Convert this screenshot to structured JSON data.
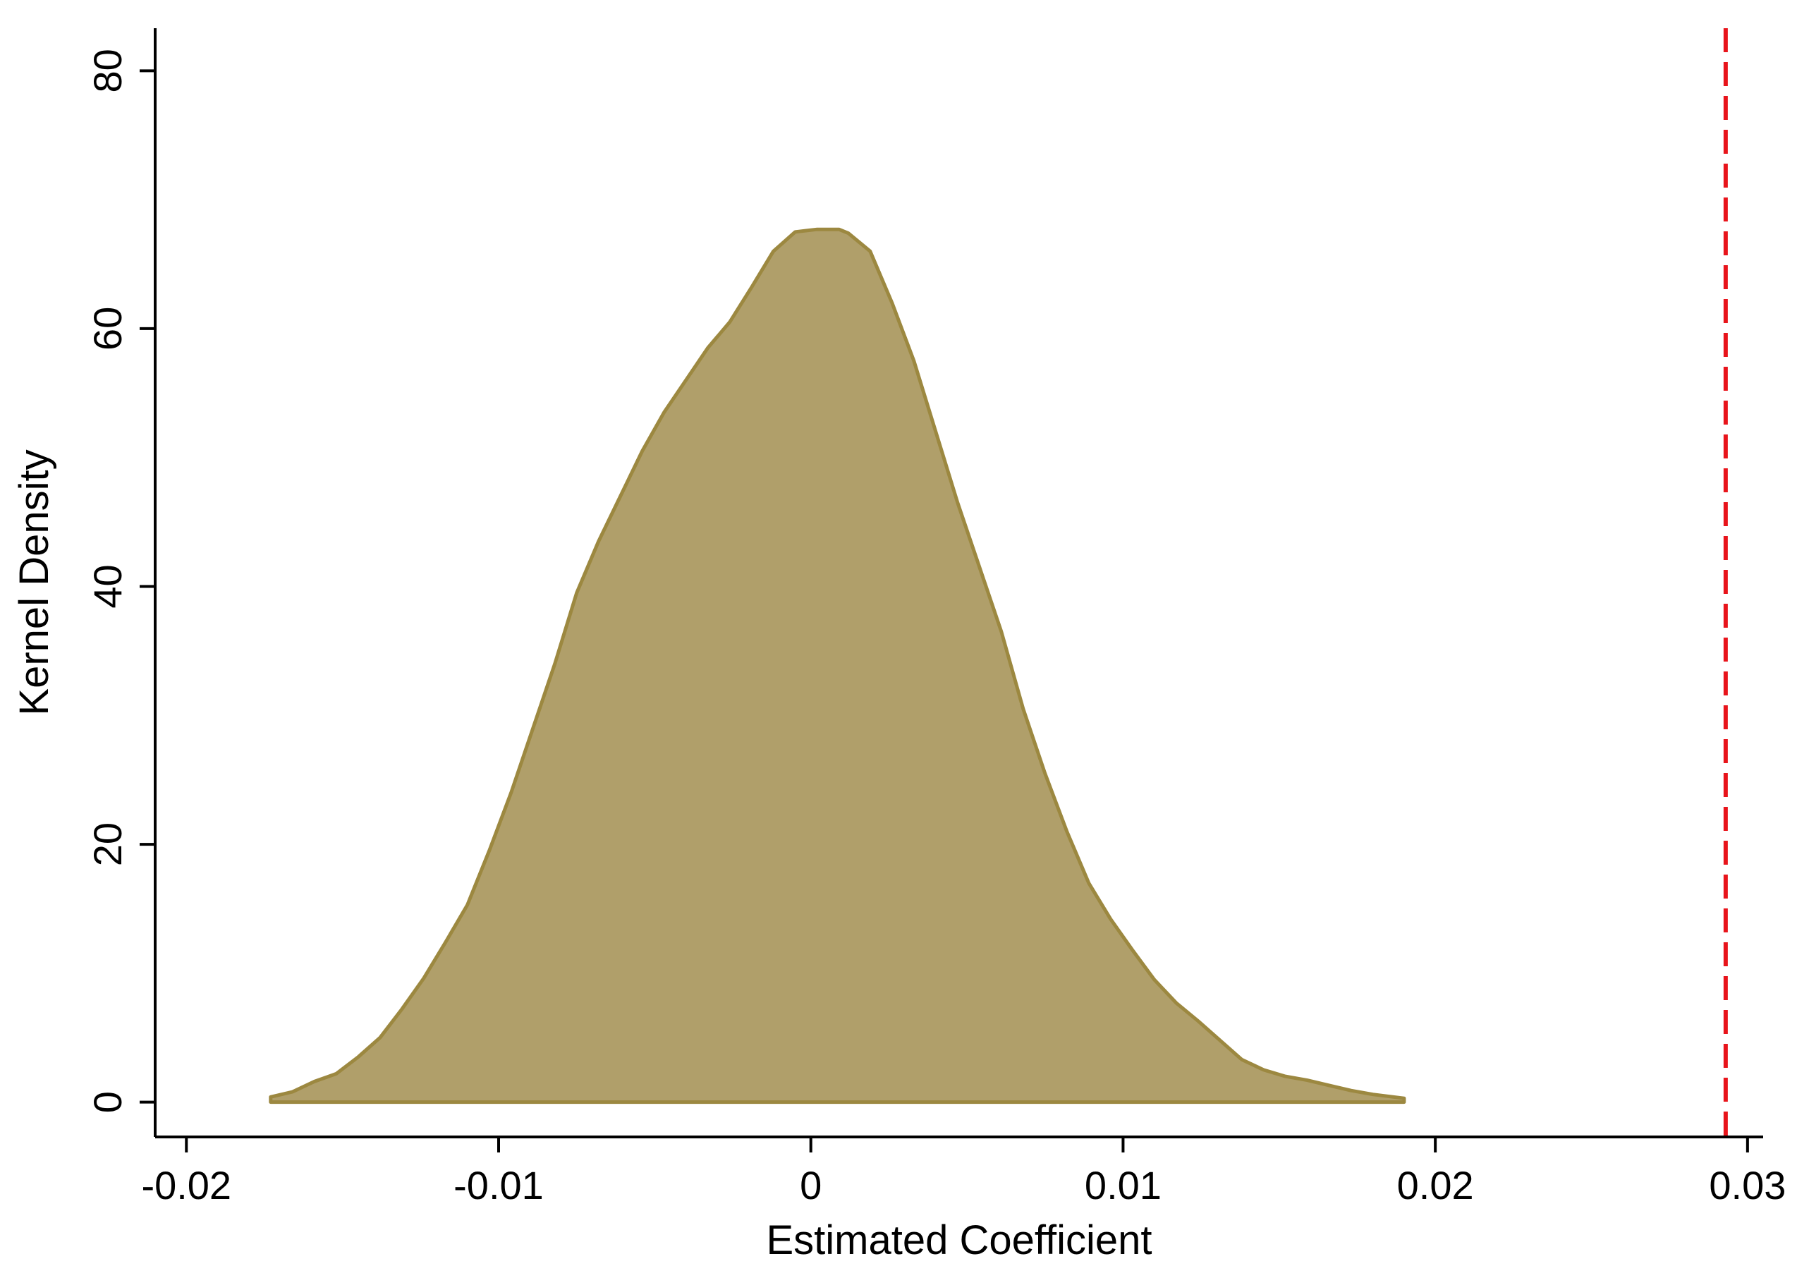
{
  "chart_data": {
    "type": "area",
    "title": "",
    "xlabel": "Estimated Coefficient",
    "ylabel": "Kernel Density",
    "xlim": [
      -0.021,
      0.0305
    ],
    "ylim": [
      -2.7,
      83.3
    ],
    "x_ticks": [
      -0.02,
      -0.01,
      0,
      0.01,
      0.02,
      0.03
    ],
    "x_tick_labels": [
      "-0.02",
      "-0.01",
      "0",
      "0.01",
      "0.02",
      "0.03"
    ],
    "y_ticks": [
      0,
      20,
      40,
      60,
      80
    ],
    "y_tick_labels": [
      "0",
      "20",
      "40",
      "60",
      "80"
    ],
    "grid": false,
    "legend": "none",
    "series": [
      {
        "x": [
          -0.0173,
          -0.0166,
          -0.0159,
          -0.0152,
          -0.0145,
          -0.0138,
          -0.0131,
          -0.0124,
          -0.0117,
          -0.011,
          -0.0103,
          -0.0096,
          -0.0089,
          -0.0082,
          -0.0075,
          -0.0068,
          -0.0061,
          -0.0054,
          -0.0047,
          -0.004,
          -0.0033,
          -0.0026,
          -0.0019,
          -0.0012,
          -0.0005,
          0.0002,
          0.0009,
          0.0012,
          0.0019,
          0.0026,
          0.0033,
          0.004,
          0.0047,
          0.0054,
          0.0061,
          0.0068,
          0.0075,
          0.0082,
          0.0089,
          0.0096,
          0.0103,
          0.011,
          0.0117,
          0.0124,
          0.0131,
          0.0138,
          0.0145,
          0.0152,
          0.0159,
          0.0166,
          0.0173,
          0.018,
          0.019
        ],
        "y": [
          0.4,
          0.8,
          1.6,
          2.2,
          3.5,
          5.0,
          7.2,
          9.6,
          12.4,
          15.3,
          19.5,
          24.0,
          29.0,
          34.0,
          39.5,
          43.5,
          47.0,
          50.5,
          53.5,
          56.0,
          58.5,
          60.5,
          63.2,
          66.0,
          67.5,
          67.7,
          67.7,
          67.4,
          66.0,
          62.0,
          57.5,
          52.0,
          46.5,
          41.5,
          36.5,
          30.5,
          25.5,
          21.0,
          17.0,
          14.2,
          11.8,
          9.5,
          7.7,
          6.3,
          4.8,
          3.3,
          2.5,
          2.0,
          1.7,
          1.3,
          0.9,
          0.6,
          0.3
        ]
      }
    ],
    "reference_line": {
      "x": 0.0293,
      "orientation": "vertical",
      "style": "dashed"
    },
    "colors": {
      "fill": "#b09f6a",
      "outline": "#9c8840",
      "reference_line": "#e8141b",
      "axis": "#000000"
    }
  }
}
